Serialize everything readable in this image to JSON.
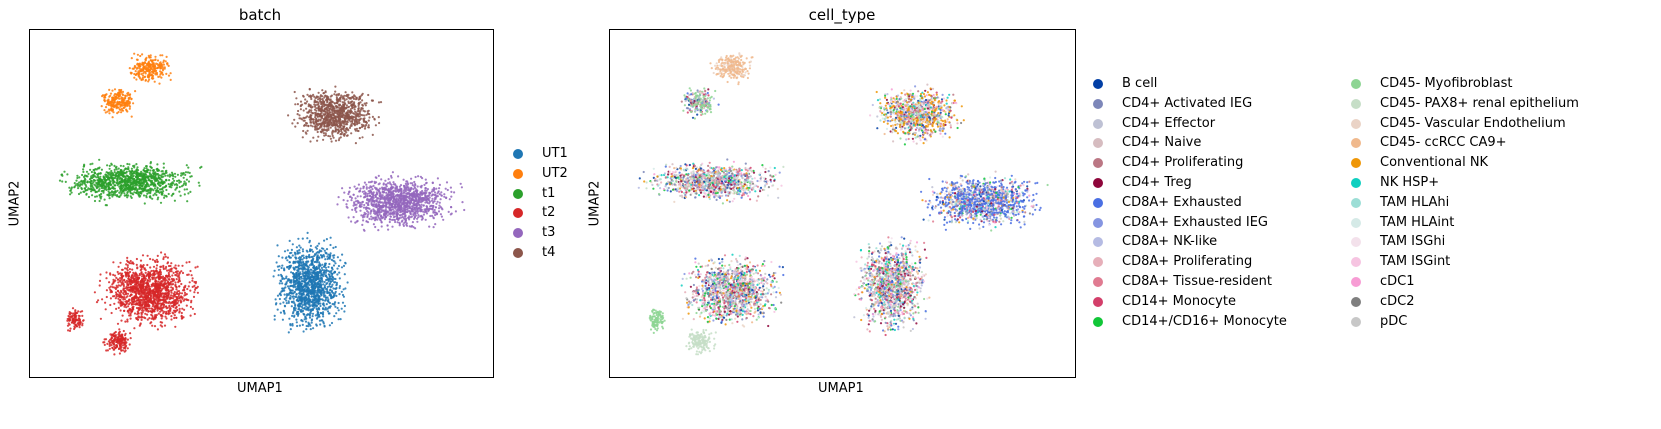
{
  "chart_data": [
    {
      "type": "scatter",
      "title": "batch",
      "xlabel": "UMAP1",
      "ylabel": "UMAP2",
      "grid": false,
      "ticks": false,
      "legend_position": "right",
      "series": [
        {
          "name": "UT1",
          "color": "#1f77b4"
        },
        {
          "name": "UT2",
          "color": "#ff7f0e"
        },
        {
          "name": "t1",
          "color": "#2ca02c"
        },
        {
          "name": "t2",
          "color": "#d62728"
        },
        {
          "name": "t3",
          "color": "#9467bd"
        },
        {
          "name": "t4",
          "color": "#8c564b"
        }
      ]
    },
    {
      "type": "scatter",
      "title": "cell_type",
      "xlabel": "UMAP1",
      "ylabel": "UMAP2",
      "grid": false,
      "ticks": false,
      "legend_position": "right",
      "series": [
        {
          "name": "B cell",
          "color": "#023fa5"
        },
        {
          "name": "CD4+ Activated IEG",
          "color": "#7d87b9"
        },
        {
          "name": "CD4+ Effector",
          "color": "#bec1d4"
        },
        {
          "name": "CD4+ Naive",
          "color": "#d6bcc0"
        },
        {
          "name": "CD4+ Proliferating",
          "color": "#bb7784"
        },
        {
          "name": "CD4+ Treg",
          "color": "#8e063b"
        },
        {
          "name": "CD8A+ Exhausted",
          "color": "#4a6fe3"
        },
        {
          "name": "CD8A+ Exhausted IEG",
          "color": "#8595e1"
        },
        {
          "name": "CD8A+ NK-like",
          "color": "#b5bbe3"
        },
        {
          "name": "CD8A+ Proliferating",
          "color": "#e6afb9"
        },
        {
          "name": "CD8A+ Tissue-resident",
          "color": "#e07b91"
        },
        {
          "name": "CD14+ Monocyte",
          "color": "#d33f6a"
        },
        {
          "name": "CD14+/CD16+ Monocyte",
          "color": "#11c638"
        },
        {
          "name": "CD45- Myofibroblast",
          "color": "#8dd593"
        },
        {
          "name": "CD45- PAX8+ renal epithelium",
          "color": "#c6dec7"
        },
        {
          "name": "CD45- Vascular Endothelium",
          "color": "#ead3c6"
        },
        {
          "name": "CD45- ccRCC CA9+",
          "color": "#f0b98d"
        },
        {
          "name": "Conventional NK",
          "color": "#ef9708"
        },
        {
          "name": "NK HSP+",
          "color": "#0fcfc0"
        },
        {
          "name": "TAM HLAhi",
          "color": "#9cded6"
        },
        {
          "name": "TAM HLAint",
          "color": "#d5eae7"
        },
        {
          "name": "TAM ISGhi",
          "color": "#f3e1eb"
        },
        {
          "name": "TAM ISGint",
          "color": "#f6c4e1"
        },
        {
          "name": "cDC1",
          "color": "#f79cd4"
        },
        {
          "name": "cDC2",
          "color": "#7f7f7f"
        },
        {
          "name": "pDC",
          "color": "#c7c7c7"
        }
      ]
    }
  ]
}
